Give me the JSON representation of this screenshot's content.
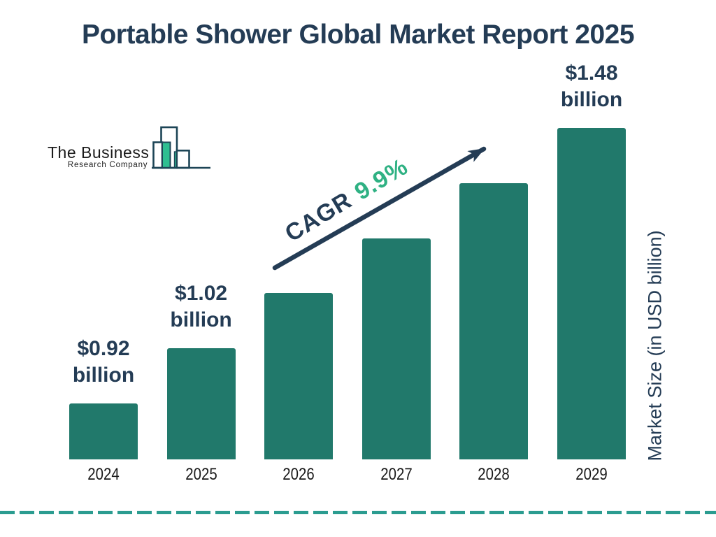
{
  "page": {
    "title": "Portable Shower Global Market Report 2025"
  },
  "logo": {
    "line1": "The Business",
    "line2": "Research Company"
  },
  "annotation": {
    "cagr_label": "CAGR",
    "cagr_value": "9.9%"
  },
  "colors": {
    "navy": "#243C55",
    "bar_teal": "#21796B",
    "accent_green": "#2FB183",
    "dashed_divider_teal": "#2B9C90",
    "logo_green": "#2EBF91",
    "logo_outline": "#1D4556",
    "year_text": "#1A1A1A"
  },
  "chart_data": {
    "type": "bar",
    "title": "Portable Shower Global Market Report 2025",
    "categories": [
      "2024",
      "2025",
      "2026",
      "2027",
      "2028",
      "2029"
    ],
    "values": [
      0.92,
      1.02,
      1.12,
      1.23,
      1.35,
      1.48
    ],
    "unit": "USD billion",
    "bar_labels": [
      {
        "amount": "$0.92",
        "unit": "billion"
      },
      {
        "amount": "$1.02",
        "unit": "billion"
      },
      null,
      null,
      null,
      {
        "amount": "$1.48",
        "unit": "billion"
      }
    ],
    "cagr": "9.9%",
    "xlabel": "",
    "ylabel": "Market Size (in USD billion)",
    "bar_color": "#21796B",
    "grid": false,
    "legend": "none",
    "axis_lines": "none"
  }
}
